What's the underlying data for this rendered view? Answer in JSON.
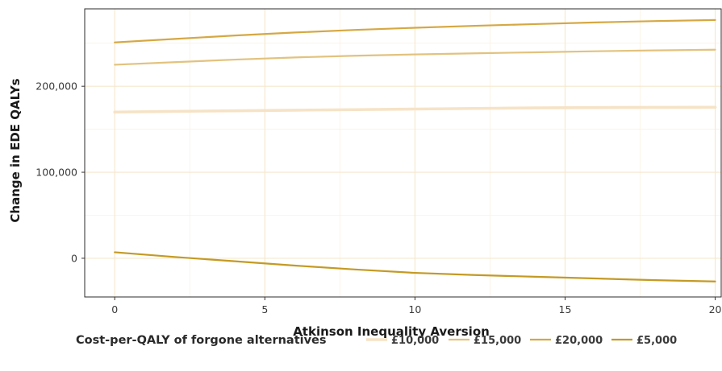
{
  "chart_data": {
    "type": "line",
    "xlabel": "Atkinson Inequality Aversion",
    "ylabel": "Change in EDE QALYs",
    "xlim": [
      -1,
      20.2
    ],
    "ylim": [
      -45000,
      290000
    ],
    "x_ticks": [
      0,
      5,
      10,
      15,
      20
    ],
    "x_tick_labels": [
      "0",
      "5",
      "10",
      "15",
      "20"
    ],
    "y_ticks": [
      0,
      100000,
      200000
    ],
    "y_tick_labels": [
      "0",
      "100,000",
      "200,000"
    ],
    "grid": true,
    "legend_position": "bottom",
    "legend_title": "Cost-per-QALY of forgone alternatives",
    "x": [
      0,
      2,
      4,
      6,
      8,
      10,
      12,
      14,
      16,
      18,
      20
    ],
    "series": [
      {
        "name": "£10,000",
        "color": "#f6e3c6",
        "stroke_width": 3.6,
        "values": [
          170000,
          170800,
          171500,
          172200,
          172800,
          173500,
          174200,
          174800,
          175200,
          175400,
          175500
        ]
      },
      {
        "name": "£15,000",
        "color": "#e2c27e",
        "stroke_width": 2.2,
        "values": [
          225000,
          228000,
          231000,
          233500,
          235500,
          237000,
          238300,
          239500,
          240700,
          241700,
          242500
        ]
      },
      {
        "name": "£20,000",
        "color": "#d5a843",
        "stroke_width": 2.2,
        "values": [
          251000,
          255000,
          259000,
          262500,
          265500,
          268000,
          270300,
          272300,
          274200,
          275800,
          277000
        ]
      },
      {
        "name": "£5,000",
        "color": "#c49a24",
        "stroke_width": 2.2,
        "values": [
          7000,
          1500,
          -3500,
          -8500,
          -13000,
          -17000,
          -19500,
          -21500,
          -23500,
          -25500,
          -27000
        ]
      }
    ]
  }
}
